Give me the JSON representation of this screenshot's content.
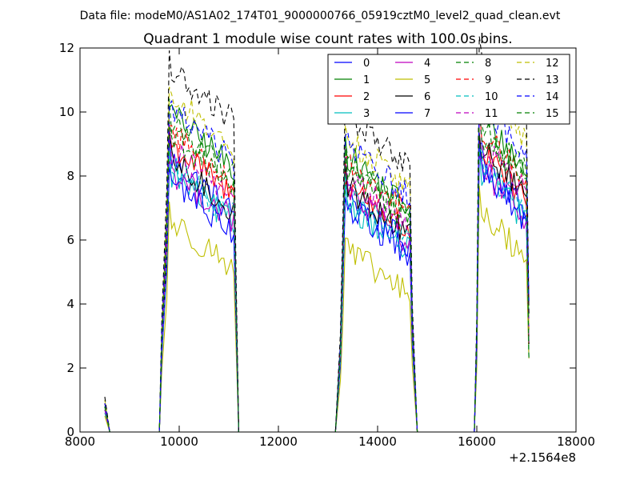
{
  "chart_data": {
    "type": "line",
    "suptitle": "Data file: modeM0/AS1A02_174T01_9000000766_05919cztM0_level2_quad_clean.evt",
    "title": "Quadrant 1 module wise count rates with 100.0s bins.",
    "xlabel": "",
    "ylabel": "",
    "x_offset_label": "+2.1564e8",
    "xlim": [
      8000,
      18000
    ],
    "ylim": [
      0,
      12
    ],
    "x_tick_labels": [
      "8000",
      "10000",
      "12000",
      "14000",
      "16000",
      "18000"
    ],
    "y_tick_labels": [
      "0",
      "2",
      "4",
      "6",
      "8",
      "10",
      "12"
    ],
    "legend_position": "upper right",
    "x_offset": 215640000,
    "segments": [
      {
        "start": 8500,
        "gap_to": 9600,
        "ramp_up": [
          9650,
          9750
        ],
        "plateau": [
          9800,
          11100
        ],
        "drop": [
          11150,
          11200
        ]
      },
      {
        "start": 13150,
        "ramp_up": [
          13250,
          13300
        ],
        "plateau": [
          13350,
          14650
        ],
        "drop": [
          14700,
          14800
        ]
      },
      {
        "start": 15950,
        "ramp_up": [
          16000,
          16000
        ],
        "plateau": [
          16050,
          17000
        ],
        "drop": [
          17050,
          17050
        ]
      }
    ],
    "series": [
      {
        "name": "0",
        "color": "#0000ff",
        "dashed": false,
        "start_value": 0.8,
        "seg1": 7.5,
        "seg2": 6.4,
        "seg3": 7.6,
        "decline": 1.1
      },
      {
        "name": "1",
        "color": "#008000",
        "dashed": false,
        "start_value": 0.7,
        "seg1": 8.9,
        "seg2": 7.6,
        "seg3": 8.8,
        "decline": 1.1
      },
      {
        "name": "2",
        "color": "#ff0000",
        "dashed": false,
        "start_value": 0.8,
        "seg1": 7.9,
        "seg2": 6.7,
        "seg3": 7.7,
        "decline": 1.0
      },
      {
        "name": "3",
        "color": "#00bfbf",
        "dashed": false,
        "start_value": 0.6,
        "seg1": 7.0,
        "seg2": 6.1,
        "seg3": 7.1,
        "decline": 1.0
      },
      {
        "name": "4",
        "color": "#bf00bf",
        "dashed": false,
        "start_value": 0.7,
        "seg1": 7.1,
        "seg2": 6.4,
        "seg3": 7.2,
        "decline": 1.0
      },
      {
        "name": "5",
        "color": "#bfbf00",
        "dashed": false,
        "start_value": 0.5,
        "seg1": 5.5,
        "seg2": 4.6,
        "seg3": 5.8,
        "decline": 0.9
      },
      {
        "name": "6",
        "color": "#000000",
        "dashed": false,
        "start_value": 0.9,
        "seg1": 7.4,
        "seg2": 6.6,
        "seg3": 7.9,
        "decline": 1.0
      },
      {
        "name": "7",
        "color": "#0000ff",
        "dashed": false,
        "start_value": 0.8,
        "seg1": 6.8,
        "seg2": 6.0,
        "seg3": 7.1,
        "decline": 1.0
      },
      {
        "name": "8",
        "color": "#008000",
        "dashed": true,
        "start_value": 0.8,
        "seg1": 8.6,
        "seg2": 7.4,
        "seg3": 8.6,
        "decline": 1.0
      },
      {
        "name": "9",
        "color": "#ff0000",
        "dashed": true,
        "start_value": 0.9,
        "seg1": 8.3,
        "seg2": 7.3,
        "seg3": 8.4,
        "decline": 1.0
      },
      {
        "name": "10",
        "color": "#00bfbf",
        "dashed": true,
        "start_value": 0.7,
        "seg1": 7.2,
        "seg2": 6.4,
        "seg3": 7.4,
        "decline": 1.0
      },
      {
        "name": "11",
        "color": "#bf00bf",
        "dashed": true,
        "start_value": 0.7,
        "seg1": 7.8,
        "seg2": 6.9,
        "seg3": 8.0,
        "decline": 1.0
      },
      {
        "name": "12",
        "color": "#bfbf00",
        "dashed": true,
        "start_value": 1.0,
        "seg1": 9.4,
        "seg2": 8.1,
        "seg3": 9.6,
        "decline": 1.0
      },
      {
        "name": "13",
        "color": "#000000",
        "dashed": true,
        "start_value": 1.1,
        "seg1": 10.2,
        "seg2": 8.8,
        "seg3": 10.4,
        "decline": 1.0
      },
      {
        "name": "14",
        "color": "#0000ff",
        "dashed": true,
        "start_value": 0.9,
        "seg1": 9.0,
        "seg2": 7.9,
        "seg3": 9.2,
        "decline": 1.0
      },
      {
        "name": "15",
        "color": "#008000",
        "dashed": true,
        "start_value": 0.8,
        "seg1": 8.2,
        "seg2": 7.1,
        "seg3": 8.3,
        "decline": 1.0
      }
    ]
  }
}
